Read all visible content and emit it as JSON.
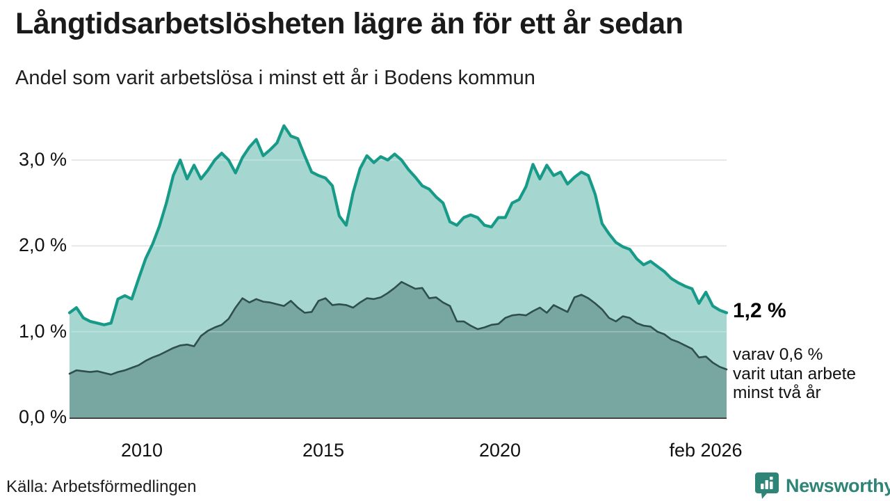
{
  "title": "Långtidsarbetslösheten lägre än för ett år sedan",
  "subtitle": "Andel som varit arbetslösa i minst ett år i Bodens kommun",
  "annotation": {
    "value_label": "1,2 %",
    "detail_lines": [
      "varav 0,6 %",
      "varit utan arbete",
      "minst två år"
    ]
  },
  "source": "Källa: Arbetsförmedlingen",
  "logo": {
    "brand": "Newsworthy"
  },
  "colors": {
    "line_total": "#179a88",
    "fill_total": "#a5d7d0",
    "line_two_years": "#2e4f4b",
    "fill_two_years": "#78a6a1",
    "gridline": "#d9d9d9",
    "axis": "#444444",
    "brand_teal": "#2e8577"
  },
  "chart_data": {
    "type": "area",
    "title": "Långtidsarbetslösheten lägre än för ett år sedan",
    "subtitle": "Andel som varit arbetslösa i minst ett år i Bodens kommun",
    "x_range": [
      "2008",
      "feb 2026"
    ],
    "x_ticks": [
      "2010",
      "2015",
      "2020",
      "feb 2026"
    ],
    "y_ticks": [
      "0,0 %",
      "1,0 %",
      "2,0 %",
      "3,0 %"
    ],
    "y_unit": "%",
    "ylim": [
      0,
      3.5
    ],
    "grid": true,
    "legend": "none",
    "end_labels": {
      "total": "1,2 %",
      "two_years": "0,6 %"
    },
    "series": [
      {
        "name": "Arbetslösa minst ett år",
        "values": [
          1.22,
          1.28,
          1.16,
          1.12,
          1.1,
          1.08,
          1.1,
          1.38,
          1.42,
          1.38,
          1.62,
          1.85,
          2.02,
          2.23,
          2.5,
          2.82,
          3.0,
          2.78,
          2.94,
          2.78,
          2.88,
          3.0,
          3.08,
          3.0,
          2.85,
          3.03,
          3.15,
          3.24,
          3.05,
          3.12,
          3.2,
          3.4,
          3.28,
          3.25,
          3.05,
          2.86,
          2.82,
          2.79,
          2.7,
          2.35,
          2.24,
          2.62,
          2.9,
          3.05,
          2.97,
          3.04,
          3.0,
          3.07,
          3.0,
          2.89,
          2.8,
          2.7,
          2.66,
          2.57,
          2.5,
          2.28,
          2.24,
          2.33,
          2.36,
          2.33,
          2.24,
          2.22,
          2.33,
          2.33,
          2.5,
          2.54,
          2.69,
          2.95,
          2.78,
          2.94,
          2.82,
          2.86,
          2.72,
          2.8,
          2.86,
          2.82,
          2.6,
          2.26,
          2.14,
          2.04,
          1.99,
          1.96,
          1.85,
          1.78,
          1.82,
          1.76,
          1.7,
          1.62,
          1.57,
          1.53,
          1.5,
          1.33,
          1.46,
          1.3,
          1.25,
          1.22
        ]
      },
      {
        "name": "Arbetslösa minst två år",
        "values": [
          0.51,
          0.55,
          0.54,
          0.53,
          0.54,
          0.52,
          0.5,
          0.53,
          0.55,
          0.58,
          0.61,
          0.66,
          0.7,
          0.73,
          0.77,
          0.81,
          0.84,
          0.85,
          0.83,
          0.95,
          1.01,
          1.05,
          1.08,
          1.15,
          1.28,
          1.39,
          1.34,
          1.38,
          1.35,
          1.34,
          1.32,
          1.3,
          1.36,
          1.28,
          1.22,
          1.23,
          1.36,
          1.39,
          1.31,
          1.32,
          1.31,
          1.28,
          1.34,
          1.39,
          1.38,
          1.4,
          1.45,
          1.51,
          1.58,
          1.54,
          1.5,
          1.51,
          1.39,
          1.4,
          1.34,
          1.3,
          1.12,
          1.12,
          1.07,
          1.03,
          1.05,
          1.08,
          1.09,
          1.16,
          1.19,
          1.2,
          1.19,
          1.24,
          1.28,
          1.22,
          1.31,
          1.27,
          1.23,
          1.4,
          1.43,
          1.39,
          1.33,
          1.26,
          1.16,
          1.12,
          1.18,
          1.16,
          1.1,
          1.07,
          1.06,
          1.0,
          0.97,
          0.91,
          0.88,
          0.84,
          0.8,
          0.7,
          0.71,
          0.64,
          0.59,
          0.56
        ]
      }
    ]
  }
}
